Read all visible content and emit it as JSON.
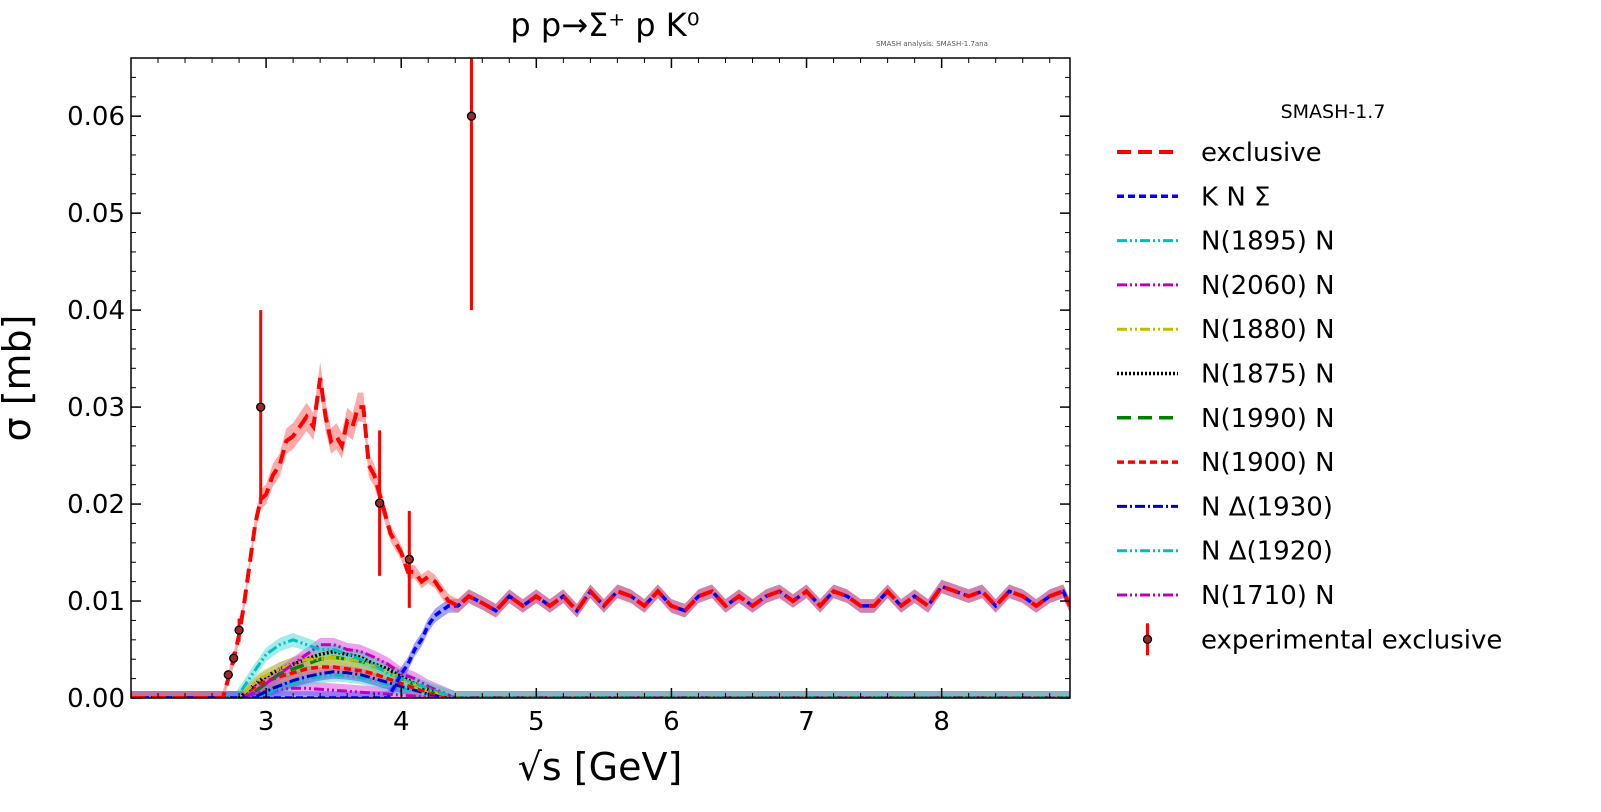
{
  "chart_data": {
    "type": "line",
    "title": "p p→Σ⁺ p K⁰",
    "annotation": "SMASH analysis: SMASH-1.7ana",
    "xlabel": "√s [GeV]",
    "ylabel": "σ [mb]",
    "xlim": [
      2.0,
      8.95
    ],
    "ylim": [
      0,
      0.066
    ],
    "x_ticks": [
      3,
      4,
      5,
      6,
      7,
      8
    ],
    "x_tick_labels": [
      "3",
      "4",
      "5",
      "6",
      "7",
      "8"
    ],
    "y_ticks": [
      0,
      0.01,
      0.02,
      0.03,
      0.04,
      0.05,
      0.06
    ],
    "y_tick_labels": [
      "0.00",
      "0.01",
      "0.02",
      "0.03",
      "0.04",
      "0.05",
      "0.06"
    ],
    "legend_title": "SMASH-1.7",
    "legend_position": "outside-right",
    "series": [
      {
        "name": "exclusive",
        "color": "#ff0000",
        "dash": "14,7",
        "width": 4,
        "band": "#ff6666",
        "x": [
          2.0,
          2.68,
          2.72,
          2.76,
          2.8,
          2.84,
          2.88,
          2.92,
          2.96,
          3.0,
          3.05,
          3.1,
          3.15,
          3.2,
          3.25,
          3.3,
          3.35,
          3.4,
          3.44,
          3.48,
          3.52,
          3.56,
          3.6,
          3.64,
          3.68,
          3.72,
          3.76,
          3.8,
          3.84,
          3.88,
          3.92,
          3.96,
          4.0,
          4.05,
          4.1,
          4.15,
          4.2,
          4.25,
          4.3,
          4.35,
          4.42,
          4.5,
          4.6,
          4.7,
          4.8,
          4.9,
          5.0,
          5.1,
          5.2,
          5.3,
          5.4,
          5.5,
          5.6,
          5.7,
          5.8,
          5.9,
          6.0,
          6.1,
          6.2,
          6.3,
          6.4,
          6.5,
          6.6,
          6.7,
          6.8,
          6.9,
          7.0,
          7.1,
          7.2,
          7.3,
          7.4,
          7.5,
          7.6,
          7.7,
          7.8,
          7.9,
          8.0,
          8.1,
          8.2,
          8.3,
          8.4,
          8.5,
          8.6,
          8.7,
          8.8,
          8.9,
          8.95
        ],
        "y": [
          0,
          0,
          0.002,
          0.004,
          0.0065,
          0.01,
          0.014,
          0.018,
          0.0205,
          0.021,
          0.023,
          0.024,
          0.0265,
          0.027,
          0.028,
          0.029,
          0.028,
          0.033,
          0.029,
          0.0265,
          0.027,
          0.026,
          0.0285,
          0.028,
          0.03,
          0.03,
          0.024,
          0.023,
          0.021,
          0.019,
          0.017,
          0.016,
          0.015,
          0.013,
          0.013,
          0.012,
          0.0125,
          0.012,
          0.011,
          0.01,
          0.0095,
          0.0105,
          0.0098,
          0.009,
          0.0105,
          0.0095,
          0.0105,
          0.0095,
          0.0105,
          0.009,
          0.011,
          0.0095,
          0.011,
          0.0105,
          0.0095,
          0.011,
          0.0095,
          0.009,
          0.0105,
          0.011,
          0.0095,
          0.0105,
          0.0095,
          0.0105,
          0.011,
          0.01,
          0.011,
          0.0095,
          0.011,
          0.0105,
          0.0095,
          0.0095,
          0.011,
          0.0095,
          0.0105,
          0.0095,
          0.0115,
          0.011,
          0.0105,
          0.011,
          0.0095,
          0.011,
          0.0105,
          0.0095,
          0.0105,
          0.011,
          0.0095
        ]
      },
      {
        "name": "K N Σ",
        "color": "#0000ff",
        "dash": "7,4",
        "width": 3.5,
        "band": "#5555ff",
        "x": [
          2.0,
          3.9,
          3.95,
          4.0,
          4.05,
          4.1,
          4.15,
          4.2,
          4.25,
          4.3,
          4.35,
          4.42,
          4.5,
          4.6,
          4.7,
          4.8,
          4.9,
          5.0,
          5.1,
          5.2,
          5.3,
          5.4,
          5.5,
          5.6,
          5.7,
          5.8,
          5.9,
          6.0,
          6.1,
          6.2,
          6.3,
          6.4,
          6.5,
          6.6,
          6.7,
          6.8,
          6.9,
          7.0,
          7.1,
          7.2,
          7.3,
          7.4,
          7.5,
          7.6,
          7.7,
          7.8,
          7.9,
          8.0,
          8.1,
          8.2,
          8.3,
          8.4,
          8.5,
          8.6,
          8.7,
          8.8,
          8.9,
          8.95
        ],
        "y": [
          0,
          0,
          0.0012,
          0.0025,
          0.0035,
          0.005,
          0.006,
          0.0075,
          0.0085,
          0.009,
          0.0095,
          0.0095,
          0.0105,
          0.0098,
          0.009,
          0.0105,
          0.0095,
          0.0105,
          0.0095,
          0.0105,
          0.009,
          0.011,
          0.0095,
          0.011,
          0.0105,
          0.0095,
          0.011,
          0.0095,
          0.009,
          0.0105,
          0.011,
          0.0095,
          0.0105,
          0.0095,
          0.0105,
          0.011,
          0.01,
          0.011,
          0.0095,
          0.011,
          0.0105,
          0.0095,
          0.0095,
          0.011,
          0.0095,
          0.0105,
          0.0095,
          0.0115,
          0.011,
          0.0105,
          0.011,
          0.0095,
          0.011,
          0.0105,
          0.0095,
          0.0105,
          0.011,
          0.0095
        ]
      },
      {
        "name": "N(1895) N",
        "color": "#00bfbf",
        "dash": "10,3,2,3,2,3",
        "width": 3,
        "band": "#55dddd",
        "x": [
          2.0,
          2.78,
          2.9,
          3.0,
          3.1,
          3.2,
          3.3,
          3.4,
          3.5,
          3.6,
          3.7,
          3.8,
          3.9,
          4.0,
          4.1,
          4.2,
          4.3,
          4.4,
          8.95
        ],
        "y": [
          0,
          0,
          0.0025,
          0.0045,
          0.0055,
          0.006,
          0.0055,
          0.005,
          0.005,
          0.0045,
          0.004,
          0.0035,
          0.0025,
          0.002,
          0.0015,
          0.001,
          0.0005,
          0,
          0
        ]
      },
      {
        "name": "N(2060) N",
        "color": "#bf00bf",
        "dash": "10,3,2,3,2,3",
        "width": 3,
        "band": "#e055e0",
        "x": [
          2.0,
          2.85,
          3.0,
          3.1,
          3.2,
          3.3,
          3.4,
          3.5,
          3.6,
          3.7,
          3.8,
          3.9,
          4.0,
          4.1,
          4.2,
          4.3,
          4.4,
          8.95
        ],
        "y": [
          0,
          0,
          0.0015,
          0.0025,
          0.0035,
          0.0045,
          0.0055,
          0.0055,
          0.005,
          0.0048,
          0.0042,
          0.0035,
          0.0025,
          0.002,
          0.0012,
          0.0006,
          0,
          0
        ]
      },
      {
        "name": "N(1880) N",
        "color": "#bfbf00",
        "dash": "10,3,2,3,2,3",
        "width": 3,
        "band": "#dddd55",
        "x": [
          2.0,
          2.8,
          2.95,
          3.1,
          3.2,
          3.3,
          3.4,
          3.5,
          3.6,
          3.7,
          3.8,
          3.9,
          4.0,
          4.1,
          4.2,
          4.3,
          4.4,
          8.95
        ],
        "y": [
          0,
          0,
          0.002,
          0.003,
          0.0035,
          0.004,
          0.004,
          0.0042,
          0.004,
          0.0038,
          0.0033,
          0.0027,
          0.002,
          0.0014,
          0.0008,
          0.0004,
          0,
          0
        ]
      },
      {
        "name": "N(1875) N",
        "color": "#000000",
        "dash": "2,2",
        "width": 3.5,
        "band": "#777777",
        "x": [
          2.0,
          2.8,
          2.95,
          3.1,
          3.2,
          3.3,
          3.4,
          3.5,
          3.6,
          3.7,
          3.8,
          3.9,
          4.0,
          4.1,
          4.2,
          4.3,
          4.4,
          8.95
        ],
        "y": [
          0,
          0,
          0.0018,
          0.003,
          0.0035,
          0.004,
          0.0045,
          0.0048,
          0.0045,
          0.0042,
          0.0035,
          0.003,
          0.0022,
          0.0015,
          0.0009,
          0.0004,
          0,
          0
        ]
      },
      {
        "name": "N(1990) N",
        "color": "#007f00",
        "dash": "14,7",
        "width": 3.5,
        "band": "#55aa55",
        "x": [
          2.0,
          2.85,
          3.0,
          3.1,
          3.2,
          3.3,
          3.4,
          3.5,
          3.6,
          3.7,
          3.8,
          3.9,
          4.0,
          4.1,
          4.2,
          4.3,
          4.4,
          8.95
        ],
        "y": [
          0,
          0,
          0.0015,
          0.0025,
          0.003,
          0.0035,
          0.004,
          0.0042,
          0.004,
          0.0038,
          0.0033,
          0.0027,
          0.002,
          0.0014,
          0.0008,
          0.0004,
          0,
          0
        ]
      },
      {
        "name": "N(1900) N",
        "color": "#ff0000",
        "dash": "7,4",
        "width": 3.5,
        "band": "#ff7777",
        "x": [
          2.0,
          2.8,
          2.95,
          3.1,
          3.2,
          3.3,
          3.4,
          3.5,
          3.6,
          3.7,
          3.8,
          3.9,
          4.0,
          4.1,
          4.2,
          4.3,
          4.4,
          8.95
        ],
        "y": [
          0,
          0,
          0.0015,
          0.0022,
          0.0026,
          0.003,
          0.0032,
          0.0032,
          0.003,
          0.0028,
          0.0025,
          0.002,
          0.0015,
          0.001,
          0.0006,
          0.0003,
          0,
          0
        ]
      },
      {
        "name": "N Δ(1930)",
        "color": "#0000bf",
        "dash": "10,3,2,3",
        "width": 3,
        "band": "#5555dd",
        "x": [
          2.0,
          2.9,
          3.05,
          3.2,
          3.3,
          3.4,
          3.5,
          3.6,
          3.7,
          3.8,
          3.9,
          4.0,
          4.1,
          4.2,
          4.3,
          4.4,
          8.95
        ],
        "y": [
          0,
          0,
          0.001,
          0.0018,
          0.0022,
          0.0025,
          0.0027,
          0.0026,
          0.0024,
          0.002,
          0.0016,
          0.0012,
          0.0008,
          0.0004,
          0.0002,
          0,
          0
        ]
      },
      {
        "name": "N Δ(1920)",
        "color": "#00bfbf",
        "dash": "10,3,2,3,2,3",
        "width": 3,
        "band": "#55dddd",
        "x": [
          2.0,
          2.9,
          3.05,
          3.2,
          3.3,
          3.4,
          3.5,
          3.6,
          3.7,
          3.8,
          3.9,
          4.0,
          4.1,
          4.2,
          4.3,
          4.4,
          8.95
        ],
        "y": [
          0,
          0,
          0.0008,
          0.0015,
          0.002,
          0.0022,
          0.0024,
          0.0023,
          0.0021,
          0.0018,
          0.0014,
          0.001,
          0.0007,
          0.0004,
          0.0002,
          0,
          0
        ]
      },
      {
        "name": "N(1710) N",
        "color": "#bf00bf",
        "dash": "10,3,2,3,2,3",
        "width": 3,
        "band": "#e055e0",
        "x": [
          2.0,
          2.78,
          2.9,
          3.0,
          3.1,
          3.2,
          3.3,
          3.4,
          3.5,
          3.6,
          3.7,
          3.8,
          3.9,
          4.0,
          4.1,
          4.2,
          4.3,
          4.4,
          8.95
        ],
        "y": [
          0,
          0,
          0.0004,
          0.0007,
          0.0009,
          0.001,
          0.001,
          0.0009,
          0.0008,
          0.0007,
          0.0006,
          0.0005,
          0.0004,
          0.0003,
          0.0002,
          0.0001,
          0,
          0,
          0
        ]
      }
    ],
    "experimental": {
      "name": "experimental exclusive",
      "color": "#ff0000",
      "points": [
        {
          "x": 2.72,
          "y": 0.0024,
          "err": 0.0004
        },
        {
          "x": 2.76,
          "y": 0.0041,
          "err": 0.0006
        },
        {
          "x": 2.8,
          "y": 0.007,
          "err": 0.0012
        },
        {
          "x": 2.96,
          "y": 0.03,
          "err": 0.01
        },
        {
          "x": 3.84,
          "y": 0.0201,
          "err": 0.0075
        },
        {
          "x": 4.06,
          "y": 0.0143,
          "err": 0.005
        },
        {
          "x": 4.52,
          "y": 0.06,
          "err": 0.02
        }
      ]
    }
  }
}
